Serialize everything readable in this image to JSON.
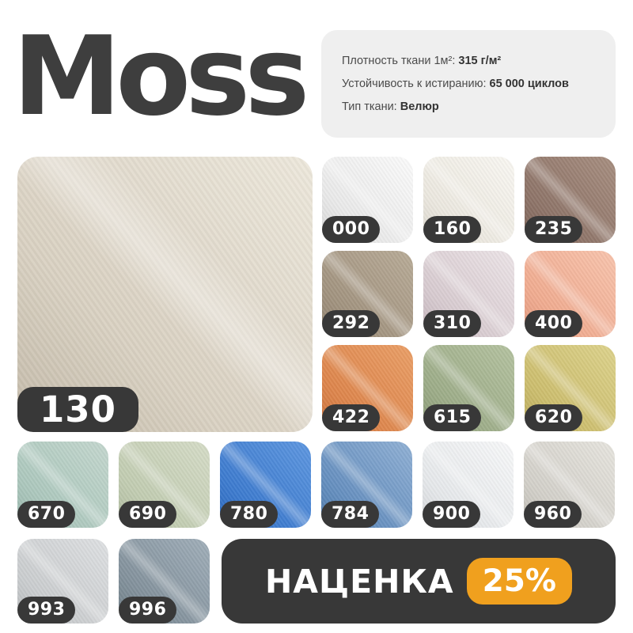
{
  "title": "Moss",
  "specs": {
    "lines": [
      {
        "label": "Плотность ткани 1м²:",
        "value": "315 г/м²"
      },
      {
        "label": "Устойчивость к истиранию:",
        "value": "65 000 циклов"
      },
      {
        "label": "Тип ткани:",
        "value": "Велюр"
      }
    ]
  },
  "main_swatch": {
    "code": "130",
    "c1": "#cfc5b4",
    "c2": "#ede8dc"
  },
  "swatch_groups": {
    "right_grid": [
      {
        "code": "000",
        "c1": "#e2e2e2",
        "c2": "#fbfbfb"
      },
      {
        "code": "160",
        "c1": "#e6e2d8",
        "c2": "#f9f7f2"
      },
      {
        "code": "235",
        "c1": "#83695e",
        "c2": "#a78e80"
      },
      {
        "code": "292",
        "c1": "#998a76",
        "c2": "#b8ab97"
      },
      {
        "code": "310",
        "c1": "#cfc0c6",
        "c2": "#ece4e7"
      },
      {
        "code": "400",
        "c1": "#eda184",
        "c2": "#f8c4ad"
      },
      {
        "code": "422",
        "c1": "#d87a40",
        "c2": "#ea9f67"
      },
      {
        "code": "615",
        "c1": "#93a37e",
        "c2": "#b4c2a0"
      },
      {
        "code": "620",
        "c1": "#c5b561",
        "c2": "#ddd28c"
      }
    ],
    "bottom_row": [
      {
        "code": "670",
        "c1": "#a2c1b6",
        "c2": "#c4d7ce"
      },
      {
        "code": "690",
        "c1": "#b9c5a8",
        "c2": "#d5dcc7"
      },
      {
        "code": "780",
        "c1": "#2f6fc7",
        "c2": "#5e97e0"
      },
      {
        "code": "784",
        "c1": "#5381b6",
        "c2": "#90b0d4"
      },
      {
        "code": "900",
        "c1": "#dfe2e5",
        "c2": "#f7f8f9"
      },
      {
        "code": "960",
        "c1": "#cbc8c1",
        "c2": "#e6e4de"
      }
    ],
    "last_row": [
      {
        "code": "993",
        "c1": "#c2c5c7",
        "c2": "#dee0e2"
      },
      {
        "code": "996",
        "c1": "#76858f",
        "c2": "#a0aeb9"
      }
    ]
  },
  "promo": {
    "label": "НАЦЕНКА",
    "value": "25%"
  },
  "colors": {
    "accent_orange": "#F0A01E",
    "badge_dark": "#383838",
    "card_background": "#efefef",
    "title_color": "#3e3e3e"
  }
}
